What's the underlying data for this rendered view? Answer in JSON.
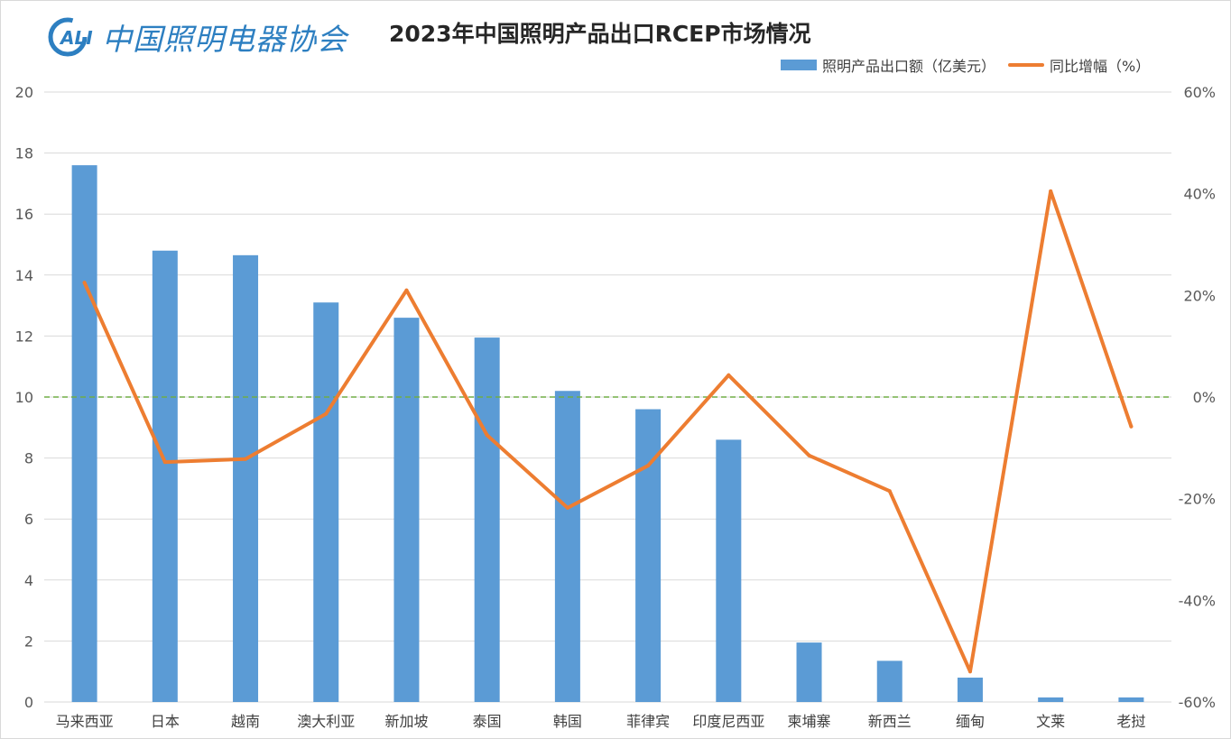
{
  "logo": {
    "mark": "CALI",
    "text": "中国照明电器协会"
  },
  "chart_data": {
    "type": "bar",
    "title": "2023年中国照明产品出口RCEP市场情况",
    "categories": [
      "马来西亚",
      "日本",
      "越南",
      "澳大利亚",
      "新加坡",
      "泰国",
      "韩国",
      "菲律宾",
      "印度尼西亚",
      "柬埔寨",
      "新西兰",
      "缅甸",
      "文莱",
      "老挝"
    ],
    "series": [
      {
        "name": "照明产品出口额（亿美元）",
        "type": "bar",
        "axis": "left",
        "color": "#5b9bd5",
        "values": [
          17.6,
          14.8,
          14.65,
          13.1,
          12.6,
          11.95,
          10.2,
          9.6,
          8.6,
          1.95,
          1.35,
          0.8,
          0.15,
          0.15
        ]
      },
      {
        "name": "同比增幅（%）",
        "type": "line",
        "axis": "right",
        "color": "#ed7d31",
        "values": [
          22.5,
          -12.8,
          -12.2,
          -3.3,
          21.0,
          -7.5,
          -21.8,
          -13.5,
          4.3,
          -11.5,
          -18.5,
          -54.0,
          40.5,
          -5.8
        ]
      }
    ],
    "y_left": {
      "min": 0,
      "max": 20,
      "ticks": [
        "0",
        "2",
        "4",
        "6",
        "8",
        "10",
        "12",
        "14",
        "16",
        "18",
        "20"
      ]
    },
    "y_right": {
      "min": -60,
      "max": 60,
      "ticks": [
        "-60%",
        "-40%",
        "-20%",
        "0%",
        "20%",
        "40%",
        "60%"
      ]
    },
    "reference_line": {
      "axis": "right",
      "value": 0,
      "color": "#70ad47",
      "style": "dashed"
    },
    "grid": true,
    "legend_position": "top-right"
  }
}
